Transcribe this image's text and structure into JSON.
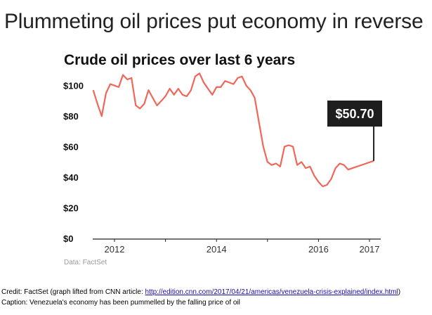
{
  "headline": "Plummeting oil prices put economy in reverse",
  "chart_data": {
    "type": "line",
    "title": "Crude oil prices over last 6 years",
    "source": "Data: FactSet",
    "y_ticks": [
      "$0",
      "$20",
      "$40",
      "$60",
      "$80",
      "$100"
    ],
    "x_ticks": [
      "2012",
      "2014",
      "2016",
      "2017"
    ],
    "ylim": [
      0,
      110
    ],
    "line_color": "#f0675a",
    "callout": {
      "label": "$50.70",
      "value": 50.7
    },
    "series": [
      {
        "x": [
          "2011-08",
          "2011-09",
          "2011-10",
          "2011-11",
          "2011-12",
          "2012-01",
          "2012-02",
          "2012-03",
          "2012-04",
          "2012-05",
          "2012-06",
          "2012-07",
          "2012-08",
          "2012-09",
          "2012-10",
          "2012-11",
          "2012-12",
          "2013-01",
          "2013-02",
          "2013-03",
          "2013-04",
          "2013-05",
          "2013-06",
          "2013-07",
          "2013-08",
          "2013-09",
          "2013-10",
          "2013-11",
          "2013-12",
          "2014-01",
          "2014-02",
          "2014-03",
          "2014-04",
          "2014-05",
          "2014-06",
          "2014-07",
          "2014-08",
          "2014-09",
          "2014-10",
          "2014-11",
          "2014-12",
          "2015-01",
          "2015-02",
          "2015-03",
          "2015-04",
          "2015-05",
          "2015-06",
          "2015-07",
          "2015-08",
          "2015-09",
          "2015-10",
          "2015-11",
          "2015-12",
          "2016-01",
          "2016-02",
          "2016-03",
          "2016-04",
          "2016-05",
          "2016-06",
          "2016-07",
          "2016-08",
          "2016-09",
          "2017-02"
        ],
        "values": [
          97,
          88,
          80,
          95,
          101,
          100,
          99,
          107,
          104,
          105,
          87,
          85,
          88,
          97,
          92,
          87,
          90,
          93,
          98,
          94,
          98,
          94,
          93,
          97,
          106,
          108,
          102,
          98,
          94,
          99,
          99,
          103,
          102,
          101,
          105,
          106,
          100,
          97,
          92,
          76,
          60,
          50,
          48,
          49,
          47,
          60,
          61,
          60,
          48,
          50,
          46,
          47,
          41,
          37,
          34,
          35,
          39,
          46,
          49,
          48,
          45,
          46,
          50.7
        ]
      }
    ]
  },
  "footer": {
    "credit_prefix": "Credit: FactSet (graph lifted from CNN article: ",
    "credit_link": "http://edition.cnn.com/2017/04/21/americas/venezuela-crisis-explained/index.html",
    "credit_suffix": ")",
    "caption": "Caption: Venezuela's economy has been pummelled by the falling price of oil"
  }
}
